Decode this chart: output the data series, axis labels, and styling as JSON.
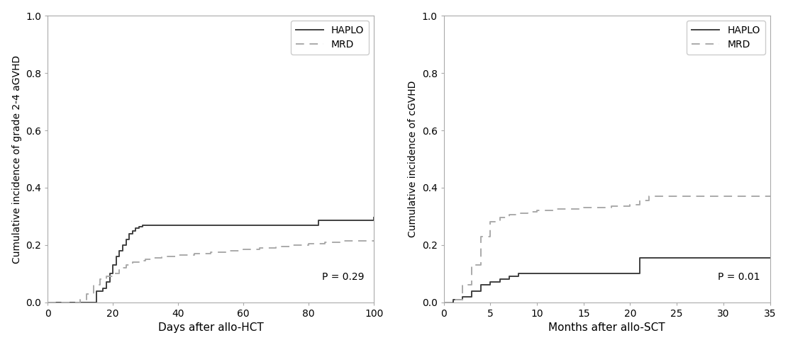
{
  "panel1": {
    "xlabel": "Days after allo-HCT",
    "ylabel": "Cumulative incidence of grade 2-4 aGVHD",
    "xlim": [
      0,
      100
    ],
    "ylim": [
      0,
      1.0
    ],
    "xticks": [
      0,
      20,
      40,
      60,
      80,
      100
    ],
    "yticks": [
      0.0,
      0.2,
      0.4,
      0.6,
      0.8,
      1.0
    ],
    "pvalue": "P = 0.29",
    "haplo_x": [
      0,
      13,
      15,
      17,
      18,
      19,
      20,
      21,
      22,
      23,
      24,
      25,
      26,
      27,
      28,
      29,
      30,
      31,
      32,
      33,
      34,
      35,
      40,
      50,
      60,
      70,
      80,
      83,
      100
    ],
    "haplo_y": [
      0.0,
      0.0,
      0.04,
      0.05,
      0.07,
      0.1,
      0.13,
      0.16,
      0.18,
      0.2,
      0.22,
      0.24,
      0.25,
      0.26,
      0.265,
      0.27,
      0.27,
      0.27,
      0.27,
      0.27,
      0.27,
      0.27,
      0.27,
      0.27,
      0.27,
      0.27,
      0.27,
      0.285,
      0.295
    ],
    "mrd_x": [
      0,
      10,
      12,
      14,
      16,
      18,
      20,
      22,
      24,
      26,
      28,
      30,
      32,
      35,
      40,
      45,
      50,
      55,
      60,
      65,
      70,
      75,
      80,
      85,
      90,
      100
    ],
    "mrd_y": [
      0.0,
      0.01,
      0.03,
      0.06,
      0.08,
      0.09,
      0.1,
      0.12,
      0.13,
      0.14,
      0.145,
      0.15,
      0.155,
      0.16,
      0.165,
      0.17,
      0.175,
      0.18,
      0.185,
      0.19,
      0.195,
      0.2,
      0.205,
      0.21,
      0.215,
      0.215
    ],
    "haplo_color": "#404040",
    "mrd_color": "#aaaaaa",
    "bg_color": "#ffffff"
  },
  "panel2": {
    "xlabel": "Months after allo-SCT",
    "ylabel": "Cumulative incidence of cGVHD",
    "xlim": [
      0,
      35
    ],
    "ylim": [
      0,
      1.0
    ],
    "xticks": [
      0,
      5,
      10,
      15,
      20,
      25,
      30,
      35
    ],
    "yticks": [
      0.0,
      0.2,
      0.4,
      0.6,
      0.8,
      1.0
    ],
    "pvalue": "P = 0.01",
    "haplo_x": [
      0,
      1,
      2,
      3,
      4,
      5,
      6,
      7,
      8,
      9,
      10,
      12,
      14,
      16,
      18,
      20,
      21,
      25,
      30,
      35
    ],
    "haplo_y": [
      0.0,
      0.01,
      0.02,
      0.04,
      0.06,
      0.07,
      0.08,
      0.09,
      0.1,
      0.1,
      0.1,
      0.1,
      0.1,
      0.1,
      0.1,
      0.1,
      0.155,
      0.155,
      0.155,
      0.155
    ],
    "mrd_x": [
      0,
      1,
      2,
      3,
      4,
      5,
      6,
      7,
      8,
      9,
      10,
      12,
      15,
      18,
      20,
      21,
      22,
      25,
      30,
      35
    ],
    "mrd_y": [
      0.0,
      0.01,
      0.06,
      0.13,
      0.23,
      0.28,
      0.295,
      0.305,
      0.31,
      0.315,
      0.32,
      0.325,
      0.33,
      0.335,
      0.34,
      0.355,
      0.37,
      0.37,
      0.37,
      0.37
    ],
    "haplo_color": "#404040",
    "mrd_color": "#aaaaaa",
    "bg_color": "#ffffff"
  },
  "legend_haplo": "HAPLO",
  "legend_mrd": "MRD",
  "font_size": 10,
  "label_font_size": 11,
  "tick_font_size": 10
}
